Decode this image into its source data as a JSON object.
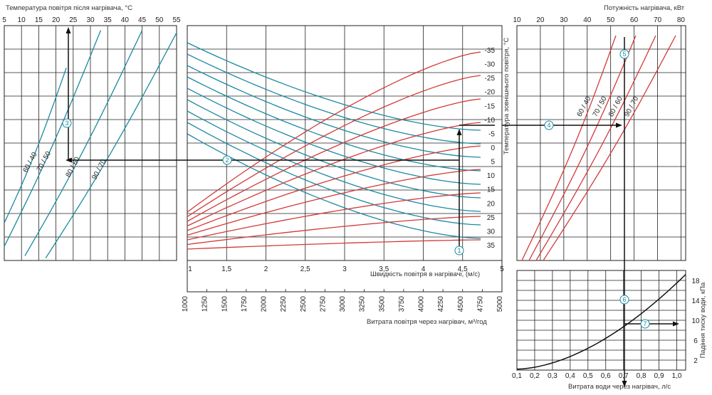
{
  "chart_data": [
    {
      "id": "left",
      "type": "line",
      "title": "Температура повітря після нагрівача, °C",
      "x_ticks": [
        5,
        10,
        15,
        20,
        25,
        30,
        35,
        40,
        45,
        50,
        55
      ],
      "xlim": [
        5,
        55
      ],
      "series": [
        {
          "name": "60 / 40",
          "values": [
            [
              5,
              0.84
            ],
            [
              23,
              0.18
            ]
          ]
        },
        {
          "name": "70 / 50",
          "values": [
            [
              5,
              0.94
            ],
            [
              33,
              0.02
            ]
          ]
        },
        {
          "name": "80 / 60",
          "values": [
            [
              11,
              0.98
            ],
            [
              45,
              0.02
            ]
          ]
        },
        {
          "name": "90 / 70",
          "values": [
            [
              17,
              0.99
            ],
            [
              55,
              0.03
            ]
          ]
        }
      ],
      "grid": true
    },
    {
      "id": "center",
      "type": "line",
      "xlabel": "Швидкість повітря в нагрівачі, (м/с)",
      "x_ticks": [
        "1",
        "1,5",
        "2",
        "2,5",
        "3",
        "3,5",
        "4",
        "4,5",
        "5"
      ],
      "xlim": [
        1,
        5
      ],
      "x2label": "Витрата повітря через нагрівач, м³/год",
      "x2_ticks": [
        1000,
        1250,
        1500,
        1750,
        2000,
        2250,
        2500,
        2750,
        3000,
        3250,
        3500,
        3750,
        4000,
        4250,
        4500,
        4750,
        5000
      ],
      "y_label": "Температура зовнішнього повітря, °C",
      "y_ticks": [
        "-35",
        "-30",
        "-25",
        "-20",
        "-15",
        "-10",
        "-5",
        "0",
        "5",
        "10",
        "15",
        "20",
        "25",
        "30",
        "35"
      ],
      "blue_series_count": 9,
      "red_series_count": 9,
      "grid": true
    },
    {
      "id": "right-top",
      "type": "line",
      "title": "Потужність нагрівача, кВт",
      "x_ticks": [
        10,
        20,
        30,
        40,
        50,
        60,
        70,
        80
      ],
      "xlim": [
        10,
        82
      ],
      "series": [
        {
          "name": "60 / 40"
        },
        {
          "name": "70 / 50"
        },
        {
          "name": "80 / 60"
        },
        {
          "name": "90 / 70"
        }
      ],
      "grid": true
    },
    {
      "id": "right-bottom",
      "type": "line",
      "xlabel": "Витрата води через нагрівач, л/с",
      "x_ticks": [
        "0,1",
        "0,2",
        "0,3",
        "0,4",
        "0,5",
        "0,6",
        "0,7",
        "0,8",
        "0,9",
        "1,0"
      ],
      "xlim": [
        0.1,
        1.05
      ],
      "ylabel": "Падіння тиску води, кПа",
      "y_ticks": [
        2,
        6,
        10,
        14,
        18
      ],
      "ylim": [
        0,
        20
      ],
      "series": [
        {
          "values": [
            [
              0.1,
              0.2
            ],
            [
              0.3,
              2.2
            ],
            [
              0.5,
              5.2
            ],
            [
              0.7,
              9.6
            ],
            [
              0.9,
              14.8
            ],
            [
              1.05,
              19.2
            ]
          ]
        }
      ],
      "grid": true
    }
  ],
  "markers": [
    "1",
    "2",
    "3",
    "4",
    "5",
    "6",
    "7"
  ]
}
